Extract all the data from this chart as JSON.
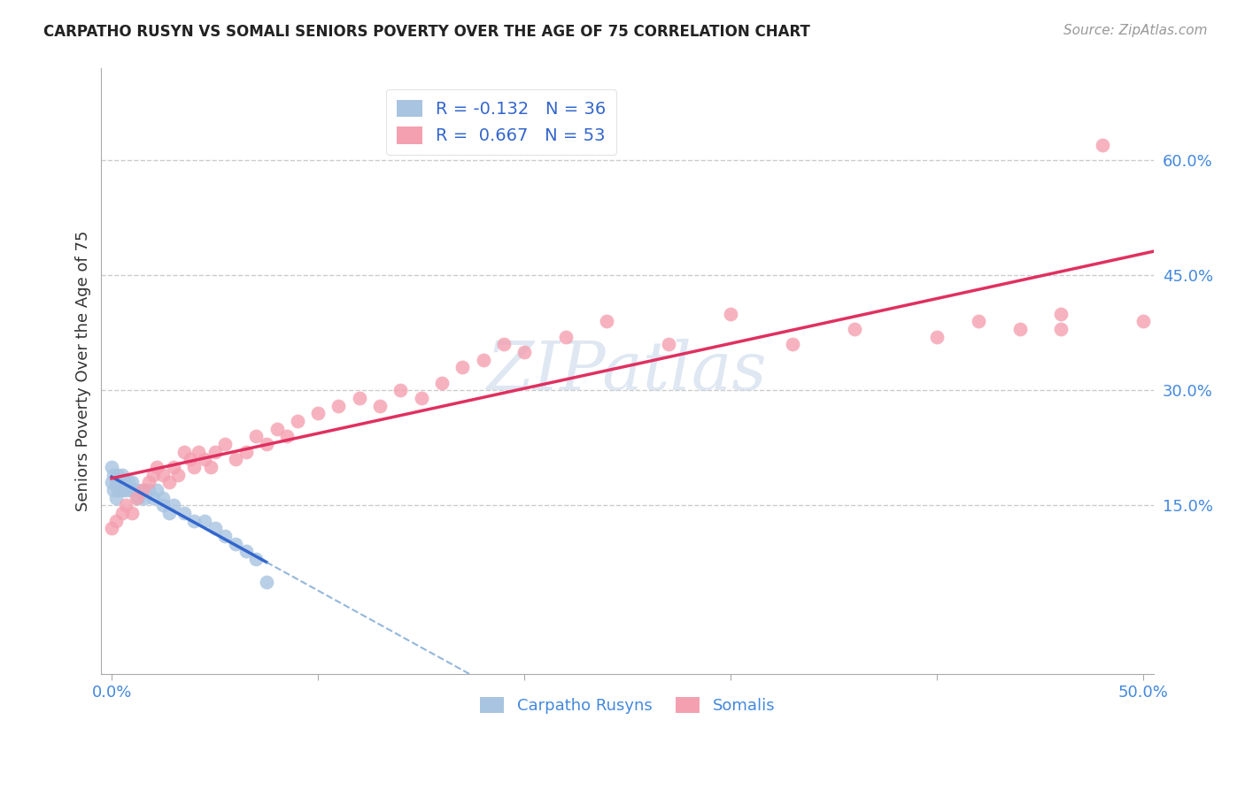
{
  "title": "CARPATHO RUSYN VS SOMALI SENIORS POVERTY OVER THE AGE OF 75 CORRELATION CHART",
  "source": "Source: ZipAtlas.com",
  "ylabel": "Seniors Poverty Over the Age of 75",
  "xlim": [
    -0.005,
    0.505
  ],
  "ylim": [
    -0.07,
    0.72
  ],
  "x_ticks": [
    0.0,
    0.1,
    0.2,
    0.3,
    0.4,
    0.5
  ],
  "x_tick_labels": [
    "0.0%",
    "",
    "",
    "",
    "",
    "50.0%"
  ],
  "y_ticks": [
    0.15,
    0.3,
    0.45,
    0.6
  ],
  "y_tick_labels": [
    "15.0%",
    "30.0%",
    "45.0%",
    "60.0%"
  ],
  "carpatho_color": "#a8c4e0",
  "somali_color": "#f4a0b0",
  "carpatho_line_solid_color": "#3366cc",
  "carpatho_line_dash_color": "#6699cc",
  "somali_line_color": "#e03060",
  "carpatho_R": -0.132,
  "carpatho_N": 36,
  "somali_R": 0.667,
  "somali_N": 53,
  "watermark": "ZIPatlas",
  "background_color": "#ffffff",
  "grid_color": "#cccccc",
  "carpatho_x": [
    0.0,
    0.0,
    0.001,
    0.001,
    0.002,
    0.002,
    0.003,
    0.003,
    0.004,
    0.005,
    0.005,
    0.006,
    0.007,
    0.008,
    0.009,
    0.01,
    0.012,
    0.013,
    0.015,
    0.016,
    0.018,
    0.02,
    0.022,
    0.025,
    0.025,
    0.028,
    0.03,
    0.035,
    0.04,
    0.045,
    0.05,
    0.055,
    0.06,
    0.065,
    0.07,
    0.075
  ],
  "carpatho_y": [
    0.18,
    0.2,
    0.17,
    0.19,
    0.16,
    0.18,
    0.17,
    0.19,
    0.18,
    0.17,
    0.19,
    0.18,
    0.17,
    0.18,
    0.17,
    0.18,
    0.17,
    0.16,
    0.17,
    0.16,
    0.17,
    0.16,
    0.17,
    0.16,
    0.15,
    0.14,
    0.15,
    0.14,
    0.13,
    0.13,
    0.12,
    0.11,
    0.1,
    0.09,
    0.08,
    0.05
  ],
  "somali_x": [
    0.0,
    0.002,
    0.005,
    0.007,
    0.01,
    0.012,
    0.015,
    0.018,
    0.02,
    0.022,
    0.025,
    0.028,
    0.03,
    0.032,
    0.035,
    0.038,
    0.04,
    0.042,
    0.045,
    0.048,
    0.05,
    0.055,
    0.06,
    0.065,
    0.07,
    0.075,
    0.08,
    0.085,
    0.09,
    0.1,
    0.11,
    0.12,
    0.13,
    0.14,
    0.15,
    0.16,
    0.17,
    0.18,
    0.19,
    0.2,
    0.22,
    0.24,
    0.27,
    0.3,
    0.33,
    0.36,
    0.4,
    0.42,
    0.44,
    0.46,
    0.48,
    0.5,
    0.46
  ],
  "somali_y": [
    0.12,
    0.13,
    0.14,
    0.15,
    0.14,
    0.16,
    0.17,
    0.18,
    0.19,
    0.2,
    0.19,
    0.18,
    0.2,
    0.19,
    0.22,
    0.21,
    0.2,
    0.22,
    0.21,
    0.2,
    0.22,
    0.23,
    0.21,
    0.22,
    0.24,
    0.23,
    0.25,
    0.24,
    0.26,
    0.27,
    0.28,
    0.29,
    0.28,
    0.3,
    0.29,
    0.31,
    0.33,
    0.34,
    0.36,
    0.35,
    0.37,
    0.39,
    0.36,
    0.4,
    0.36,
    0.38,
    0.37,
    0.39,
    0.38,
    0.4,
    0.62,
    0.39,
    0.38
  ],
  "legend1_label1": "R = -0.132   N = 36",
  "legend1_label2": "R =  0.667   N = 53",
  "legend2_label1": "Carpatho Rusyns",
  "legend2_label2": "Somalis"
}
